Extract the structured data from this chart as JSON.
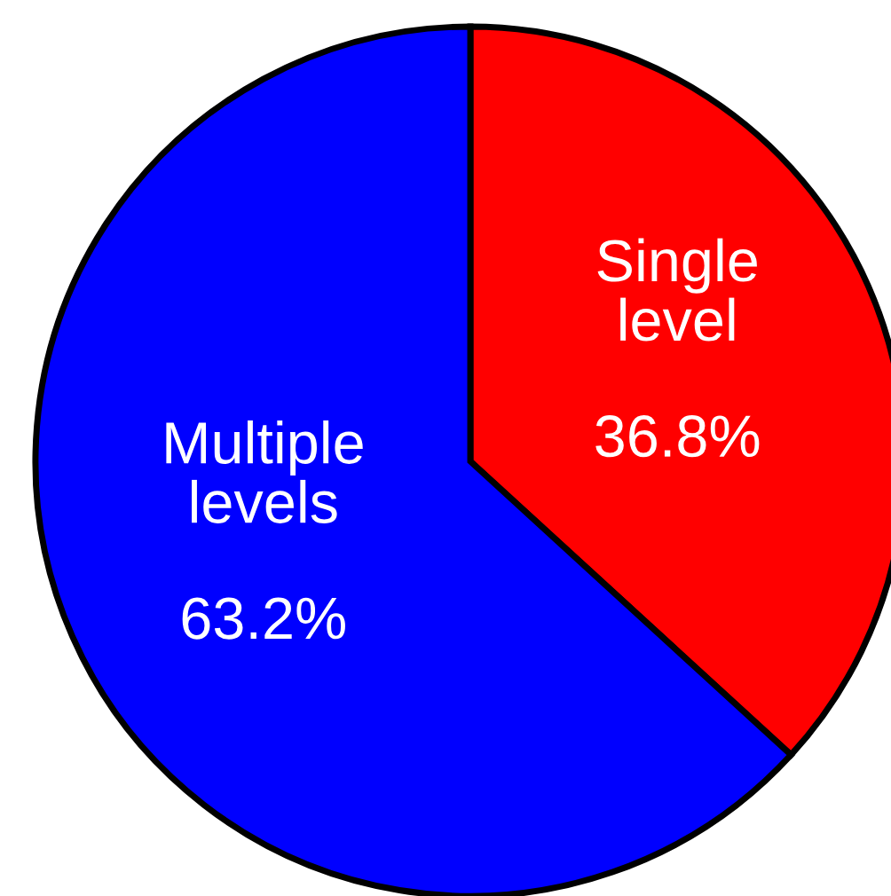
{
  "chart_data": {
    "type": "pie",
    "categories": [
      "Single level",
      "Multiple levels"
    ],
    "values": [
      36.8,
      63.2
    ],
    "value_labels": [
      "36.8%",
      "63.2%"
    ],
    "colors": [
      "#ff0000",
      "#0000ff"
    ]
  }
}
